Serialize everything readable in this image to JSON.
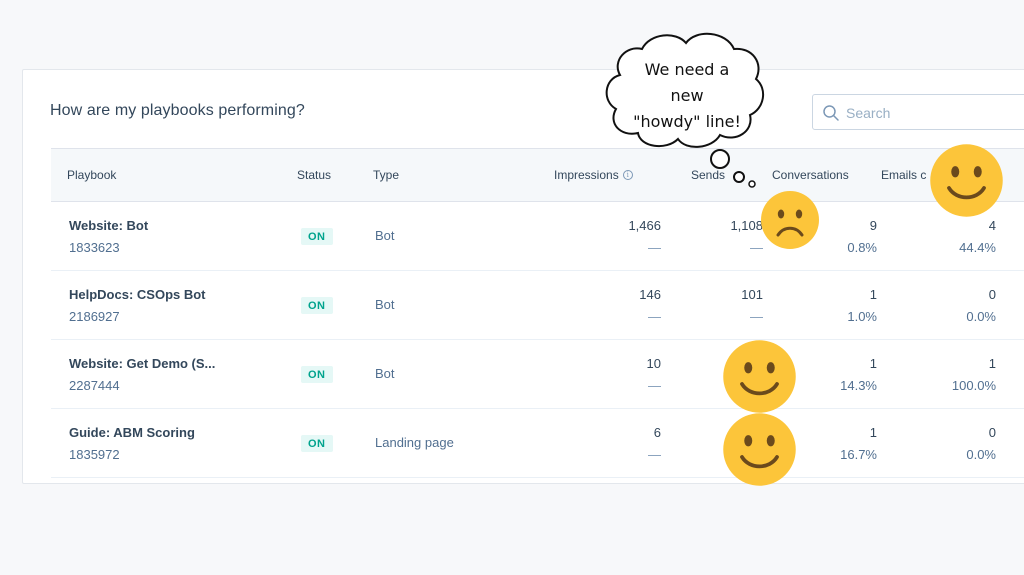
{
  "panel": {
    "title": "How are my playbooks performing?",
    "search_placeholder": "Search"
  },
  "table": {
    "columns": {
      "playbook": "Playbook",
      "status": "Status",
      "type": "Type",
      "impressions": "Impressions",
      "sends": "Sends",
      "conversations": "Conversations",
      "emails": "Emails c"
    },
    "rows": [
      {
        "name": "Website: Bot",
        "id": "1833623",
        "status": "ON",
        "type": "Bot",
        "impressions": "1,466",
        "impressions_sub": "—",
        "sends": "1,108",
        "sends_sub": "—",
        "conversations": "9",
        "conversations_pct": "0.8%",
        "emails": "4",
        "emails_pct": "44.4%"
      },
      {
        "name": "HelpDocs: CSOps Bot",
        "id": "2186927",
        "status": "ON",
        "type": "Bot",
        "impressions": "146",
        "impressions_sub": "—",
        "sends": "101",
        "sends_sub": "—",
        "conversations": "1",
        "conversations_pct": "1.0%",
        "emails": "0",
        "emails_pct": "0.0%"
      },
      {
        "name": "Website: Get Demo (S...",
        "id": "2287444",
        "status": "ON",
        "type": "Bot",
        "impressions": "10",
        "impressions_sub": "—",
        "sends": "",
        "sends_sub": "",
        "conversations": "1",
        "conversations_pct": "14.3%",
        "emails": "1",
        "emails_pct": "100.0%"
      },
      {
        "name": "Guide: ABM Scoring",
        "id": "1835972",
        "status": "ON",
        "type": "Landing page",
        "impressions": "6",
        "impressions_sub": "—",
        "sends": "",
        "sends_sub": "",
        "conversations": "1",
        "conversations_pct": "16.7%",
        "emails": "0",
        "emails_pct": "0.0%"
      }
    ]
  },
  "annotation": {
    "thought_line1": "We need a",
    "thought_line2": "new",
    "thought_line3": "\"howdy\" line!"
  },
  "icons": {
    "search": "search-icon",
    "info": "info-icon",
    "happy": "smiley-face-icon",
    "sad": "frowning-face-icon"
  },
  "colors": {
    "status_on_bg": "#e5f8f6",
    "status_on_text": "#00a38d",
    "emoji_yellow": "#fcc53a"
  }
}
